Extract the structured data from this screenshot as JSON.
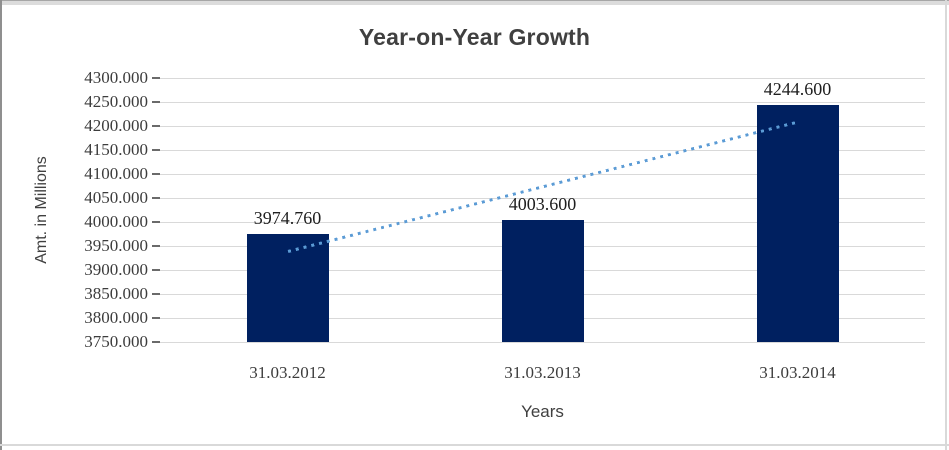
{
  "chart_data": {
    "type": "bar",
    "title": "Year-on-Year Growth",
    "xlabel": "Years",
    "ylabel": "Amt. in Millions",
    "categories": [
      "31.03.2012",
      "31.03.2013",
      "31.03.2014"
    ],
    "values": [
      3974.76,
      4003.6,
      4244.6
    ],
    "data_labels": [
      "3974.760",
      "4003.600",
      "4244.600"
    ],
    "ylim": [
      3750,
      4300
    ],
    "y_tick_step": 50,
    "y_tick_labels": [
      "4300.000",
      "4250.000",
      "4200.000",
      "4150.000",
      "4100.000",
      "4050.000",
      "4000.000",
      "3950.000",
      "3900.000",
      "3850.000",
      "3800.000",
      "3750.000"
    ],
    "grid": true,
    "legend": "none",
    "trendline": {
      "type": "linear",
      "style": "dotted"
    },
    "colors": {
      "bar": "#002060",
      "trendline": "#5B9BD5",
      "gridline": "#D9D9D9",
      "tick": "#6a6a6a",
      "title_text": "#404040",
      "axis_text": "#3C3C3C",
      "data_label_text": "#1F1F1F"
    }
  }
}
